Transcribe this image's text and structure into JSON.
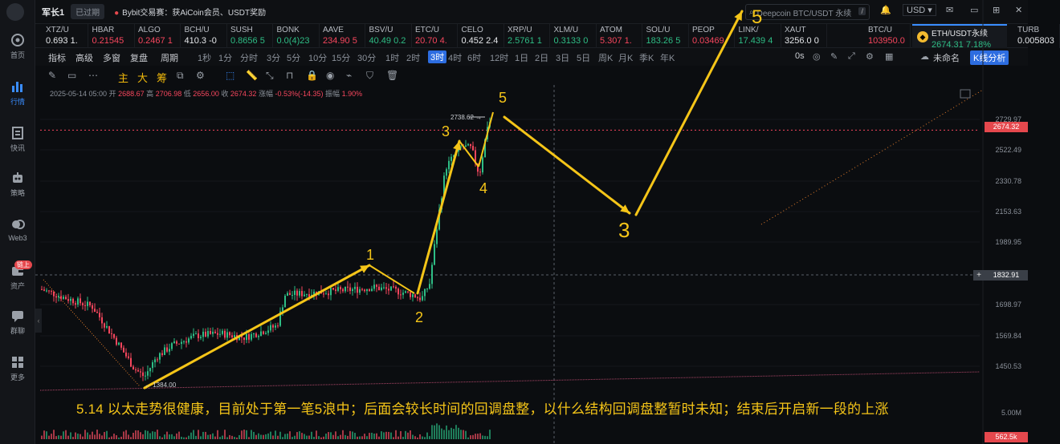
{
  "app": {
    "title": "军长1",
    "pill": "已过期",
    "news": "Bybit交易赛：获AiCoin会员、USDT奖励",
    "search_placeholder": "Deepcoin BTC/USDT 永续",
    "search_key": "/",
    "currency": "USD"
  },
  "sidebar": [
    {
      "label": "首页",
      "icon": "home-icon"
    },
    {
      "label": "行情",
      "icon": "market-chart-icon",
      "active": true
    },
    {
      "label": "快讯",
      "icon": "news-icon"
    },
    {
      "label": "策略",
      "icon": "robot-icon"
    },
    {
      "label": "Web3",
      "icon": "web3-icon"
    },
    {
      "label": "资产",
      "icon": "wallet-icon",
      "badge": "链上"
    },
    {
      "label": "群聊",
      "icon": "chat-icon"
    },
    {
      "label": "更多",
      "icon": "more-grid-icon"
    }
  ],
  "tickers": [
    {
      "sym": "XTZ/U",
      "px": "0.693 1.",
      "dir": "wh"
    },
    {
      "sym": "HBAR",
      "px": "0.21545",
      "dir": "dn"
    },
    {
      "sym": "ALGO",
      "px": "0.2467 1",
      "dir": "dn"
    },
    {
      "sym": "BCH/U",
      "px": "410.3 -0",
      "dir": "wh"
    },
    {
      "sym": "SUSH",
      "px": "0.8656 5",
      "dir": "up"
    },
    {
      "sym": "BONK",
      "px": "0.0(4)23",
      "dir": "up"
    },
    {
      "sym": "AAVE",
      "px": "234.90 5",
      "dir": "dn"
    },
    {
      "sym": "BSV/U",
      "px": "40.49 0.2",
      "dir": "up"
    },
    {
      "sym": "ETC/U",
      "px": "20.70 4.",
      "dir": "dn"
    },
    {
      "sym": "CELO",
      "px": "0.452 2.4",
      "dir": "wh"
    },
    {
      "sym": "XRP/U",
      "px": "2.5761 1",
      "dir": "up"
    },
    {
      "sym": "XLM/U",
      "px": "0.3133 0",
      "dir": "up"
    },
    {
      "sym": "ATOM",
      "px": "5.307 1.",
      "dir": "dn"
    },
    {
      "sym": "SOL/U",
      "px": "183.26 5",
      "dir": "up"
    },
    {
      "sym": "PEOP",
      "px": "0.03469",
      "dir": "dn"
    },
    {
      "sym": "LINK/",
      "px": "17.439 4",
      "dir": "up"
    },
    {
      "sym": "XAUT",
      "px": "3256.0 0",
      "dir": "wh"
    },
    {
      "sym": "BTC/U",
      "px": "103950.0",
      "dir": "dn"
    },
    {
      "sym": "TURB",
      "px": "0.005803",
      "dir": "wh"
    }
  ],
  "active_ticker": {
    "sym": "ETH/USDT永续",
    "px": "2674.31",
    "chg": "7.18%"
  },
  "toolbar1": {
    "items": [
      "指标",
      "高级",
      "多窗",
      "复盘",
      "周期",
      "1秒",
      "1分",
      "分时",
      "3分",
      "5分",
      "10分",
      "15分",
      "30分",
      "1时",
      "2时",
      "3时",
      "4时",
      "6时",
      "12时",
      "1日",
      "2日",
      "3日",
      "5日",
      "周K",
      "月K",
      "季K",
      "年K"
    ],
    "selected": "3时",
    "right": {
      "zero_s": "0s",
      "name": "未命名",
      "kline": "K线分析"
    }
  },
  "toolbar2": {
    "main": "主",
    "big": "大",
    "chip": "筹"
  },
  "info": {
    "date": "2025-05-14 05:00",
    "open_label": "开",
    "open": "2688.67",
    "high_label": "高",
    "high": "2706.98",
    "low_label": "低",
    "low": "2656.00",
    "close_label": "收",
    "close": "2674.32",
    "chg_label": "涨幅",
    "chg": "-0.53%(-14.35)",
    "amp_label": "振幅",
    "amp": "1.90%"
  },
  "price_axis": [
    "2729.97",
    "2522.49",
    "2330.78",
    "2153.63",
    "1989.95",
    "1698.97",
    "1569.84",
    "1450.53",
    "5.00M"
  ],
  "price_labels": {
    "current": "2674.32",
    "cross": "1832.91",
    "volume": "562.5k"
  },
  "annotations": {
    "hi": "2738.62",
    "lo": "1384.00",
    "w1": "1",
    "w2": "2",
    "w3": "3",
    "w4": "4",
    "w5": "5",
    "n3": "3",
    "n5": "5"
  },
  "caption": "5.14 以太走势很健康，目前处于第一笔5浪中；后面会较长时间的回调盘整，以什么结构回调盘整暂时未知；结束后开启新一段的上涨",
  "colors": {
    "up": "#2ebd85",
    "down": "#f6465d",
    "accent": "#3a8dff",
    "annotation": "#f5c518"
  },
  "chart_data": {
    "type": "candlestick",
    "last_close": 2674.32,
    "high_marker": 2738.62,
    "low_marker": 1384.0,
    "range": [
      1384.0,
      2738.62
    ]
  }
}
